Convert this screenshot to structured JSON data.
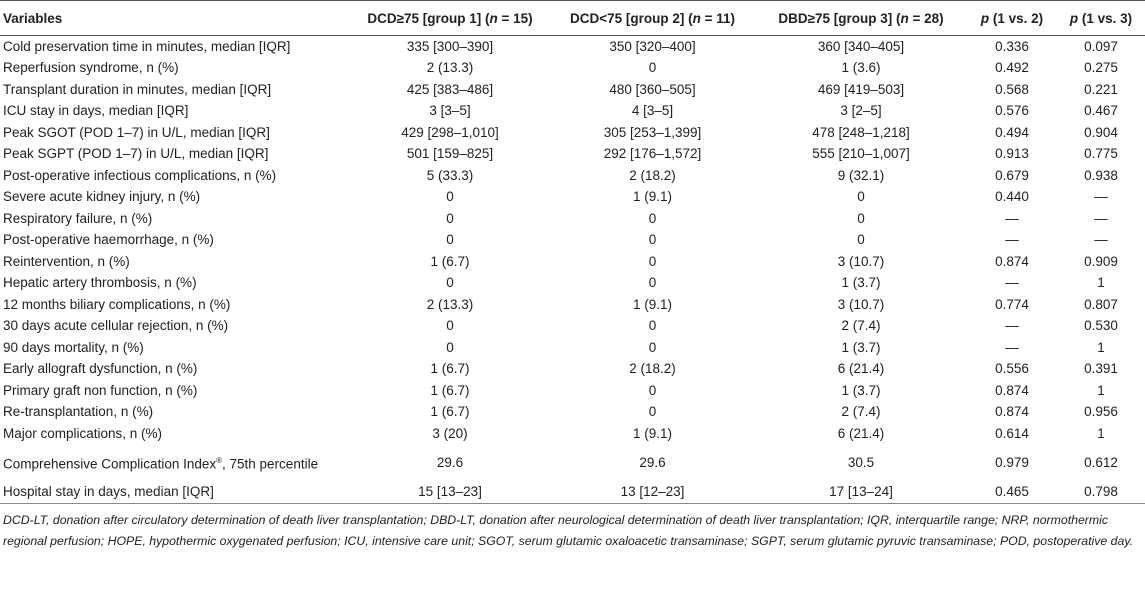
{
  "header": {
    "variables": "Variables",
    "g1": "DCD≥75 [group 1] (",
    "g1_n": "n",
    "g1_val": " = 15)",
    "g2": "DCD<75 [group 2] (",
    "g2_n": "n",
    "g2_val": " = 11)",
    "g3": "DBD≥75 [group 3] (",
    "g3_n": "n",
    "g3_val": " = 28)",
    "p12_p": "p",
    "p12": " (1 vs. 2)",
    "p13_p": "p",
    "p13": " (1 vs. 3)"
  },
  "rows": [
    {
      "label": "Cold preservation time in minutes, median [IQR]",
      "g1": "335 [300–390]",
      "g2": "350 [320–400]",
      "g3": "360 [340–405]",
      "p12": "0.336",
      "p13": "0.097"
    },
    {
      "label": "Reperfusion syndrome, n (%)",
      "g1": "2 (13.3)",
      "g2": "0",
      "g3": "1 (3.6)",
      "p12": "0.492",
      "p13": "0.275"
    },
    {
      "label": "Transplant duration in minutes, median [IQR]",
      "g1": "425 [383–486]",
      "g2": "480 [360–505]",
      "g3": "469 [419–503]",
      "p12": "0.568",
      "p13": "0.221"
    },
    {
      "label": "ICU stay in days, median [IQR]",
      "g1": "3 [3–5]",
      "g2": "4 [3–5]",
      "g3": "3 [2–5]",
      "p12": "0.576",
      "p13": "0.467"
    },
    {
      "label": "Peak SGOT (POD 1–7) in U/L, median [IQR]",
      "g1": "429 [298–1,010]",
      "g2": "305 [253–1,399]",
      "g3": "478 [248–1,218]",
      "p12": "0.494",
      "p13": "0.904"
    },
    {
      "label": "Peak SGPT (POD 1–7) in U/L, median [IQR]",
      "g1": "501 [159–825]",
      "g2": "292 [176–1,572]",
      "g3": "555 [210–1,007]",
      "p12": "0.913",
      "p13": "0.775"
    },
    {
      "label": "Post-operative infectious complications, n (%)",
      "g1": "5 (33.3)",
      "g2": "2 (18.2)",
      "g3": "9 (32.1)",
      "p12": "0.679",
      "p13": "0.938"
    },
    {
      "label": "Severe acute kidney injury, n (%)",
      "g1": "0",
      "g2": "1 (9.1)",
      "g3": "0",
      "p12": "0.440",
      "p13": "—"
    },
    {
      "label": "Respiratory failure, n (%)",
      "g1": "0",
      "g2": "0",
      "g3": "0",
      "p12": "—",
      "p13": "—"
    },
    {
      "label": "Post-operative haemorrhage, n (%)",
      "g1": "0",
      "g2": "0",
      "g3": "0",
      "p12": "—",
      "p13": "—"
    },
    {
      "label": "Reintervention, n (%)",
      "g1": "1 (6.7)",
      "g2": "0",
      "g3": "3 (10.7)",
      "p12": "0.874",
      "p13": "0.909"
    },
    {
      "label": "Hepatic artery thrombosis, n (%)",
      "g1": "0",
      "g2": "0",
      "g3": "1 (3.7)",
      "p12": "—",
      "p13": "1"
    },
    {
      "label": "12 months biliary complications, n (%)",
      "g1": "2 (13.3)",
      "g2": "1 (9.1)",
      "g3": "3 (10.7)",
      "p12": "0.774",
      "p13": "0.807"
    },
    {
      "label": "30 days acute cellular rejection, n (%)",
      "g1": "0",
      "g2": "0",
      "g3": "2 (7.4)",
      "p12": "—",
      "p13": "0.530"
    },
    {
      "label": "90 days mortality, n (%)",
      "g1": "0",
      "g2": "0",
      "g3": "1 (3.7)",
      "p12": "—",
      "p13": "1"
    },
    {
      "label": "Early allograft dysfunction, n (%)",
      "g1": "1 (6.7)",
      "g2": "2 (18.2)",
      "g3": "6 (21.4)",
      "p12": "0.556",
      "p13": "0.391"
    },
    {
      "label": "Primary graft non function, n (%)",
      "g1": "1 (6.7)",
      "g2": "0",
      "g3": "1 (3.7)",
      "p12": "0.874",
      "p13": "1"
    },
    {
      "label": "Re-transplantation, n (%)",
      "g1": "1 (6.7)",
      "g2": "0",
      "g3": "2 (7.4)",
      "p12": "0.874",
      "p13": "0.956"
    },
    {
      "label": "Major complications, n (%)",
      "g1": "3 (20)",
      "g2": "1 (9.1)",
      "g3": "6 (21.4)",
      "p12": "0.614",
      "p13": "1"
    },
    {
      "label": "Comprehensive Complication Index",
      "label_sup": "®",
      "label_tail": ", 75th percentile",
      "g1": "29.6",
      "g2": "29.6",
      "g3": "30.5",
      "p12": "0.979",
      "p13": "0.612"
    },
    {
      "label": "Hospital stay in days, median [IQR]",
      "g1": "15 [13–23]",
      "g2": "13 [12–23]",
      "g3": "17 [13–24]",
      "p12": "0.465",
      "p13": "0.798"
    }
  ],
  "footnote": "DCD-LT, donation after circulatory determination of death liver transplantation; DBD-LT, donation after neurological determination of death liver transplantation; IQR, interquartile range; NRP, normothermic regional perfusion; HOPE, hypothermic oxygenated perfusion; ICU, intensive care unit; SGOT, serum glutamic oxaloacetic transaminase; SGPT, serum glutamic pyruvic transaminase; POD, postoperative day."
}
